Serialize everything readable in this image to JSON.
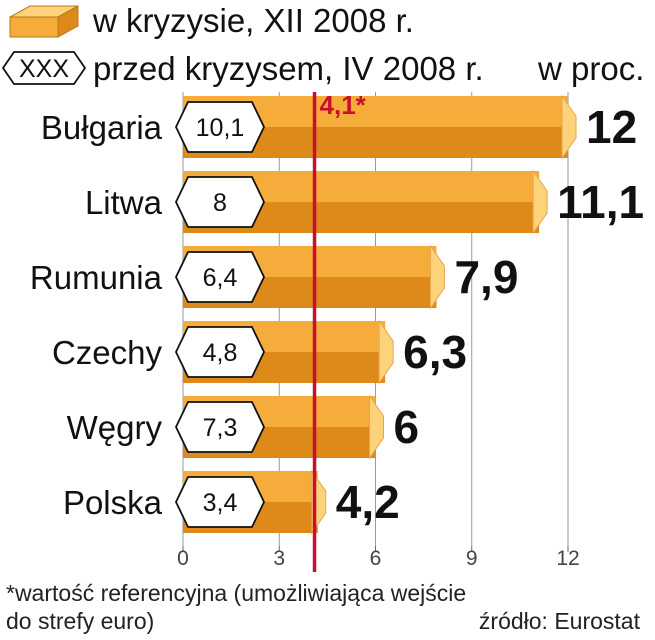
{
  "legend": {
    "crisis_label": "w kryzysie, XII 2008 r.",
    "before_label": "przed kryzysem, IV 2008 r.",
    "before_marker": "XXX",
    "unit": "w proc."
  },
  "reference": {
    "label": "4,1*"
  },
  "footnote": {
    "line1": "*wartość referencyjna (umożliwiająca wejście",
    "line2": "do strefy euro)",
    "source": "źródło: Eurostat"
  },
  "colors": {
    "bar_face": "#f5ac3a",
    "bar_shadow": "#de8a1b",
    "bar_cap": "#fcd27a",
    "reference_line": "#c8102e"
  },
  "chart_data": {
    "type": "bar",
    "orientation": "horizontal",
    "categories": [
      "Bułgaria",
      "Litwa",
      "Rumunia",
      "Czechy",
      "Węgry",
      "Polska"
    ],
    "series": [
      {
        "name": "w kryzysie, XII 2008 r.",
        "values": [
          12,
          11.1,
          7.9,
          6.3,
          6,
          4.2
        ],
        "labels": [
          "12",
          "11,1",
          "7,9",
          "6,3",
          "6",
          "4,2"
        ]
      },
      {
        "name": "przed kryzysem, IV 2008 r.",
        "values": [
          10.1,
          8,
          6.4,
          4.8,
          7.3,
          3.4
        ],
        "labels": [
          "10,1",
          "8",
          "6,4",
          "4,8",
          "7,3",
          "3,4"
        ]
      }
    ],
    "reference_value": 4.1,
    "xlim": [
      0,
      12
    ],
    "xticks": [
      0,
      3,
      6,
      9,
      12
    ],
    "xtick_labels": [
      "0",
      "3",
      "6",
      "9",
      "12"
    ],
    "grid": "vertical"
  }
}
